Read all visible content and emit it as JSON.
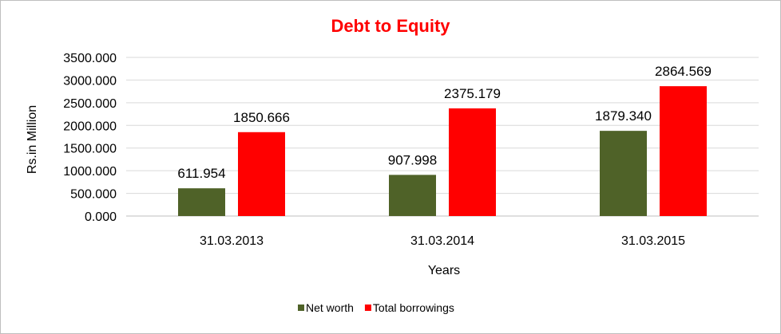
{
  "chart_data": {
    "type": "bar",
    "title": "Debt to Equity",
    "xlabel": "Years",
    "ylabel": "Rs.in Million",
    "categories": [
      "31.03.2013",
      "31.03.2014",
      "31.03.2015"
    ],
    "series": [
      {
        "name": "Net worth",
        "values": [
          611.954,
          907.998,
          1879.34
        ],
        "labels": [
          "611.954",
          "907.998",
          "1879.340"
        ],
        "color": "#4f6228"
      },
      {
        "name": "Total borrowings",
        "values": [
          1850.666,
          2375.179,
          2864.569
        ],
        "labels": [
          "1850.666",
          "2375.179",
          "2864.569"
        ],
        "color": "#ff0000"
      }
    ],
    "ylim": [
      0,
      3500
    ],
    "yticks": [
      "0.000",
      "500.000",
      "1000.000",
      "1500.000",
      "2000.000",
      "2500.000",
      "3000.000",
      "3500.000"
    ],
    "grid": true,
    "legend_position": "bottom",
    "title_color": "#ff0000"
  }
}
